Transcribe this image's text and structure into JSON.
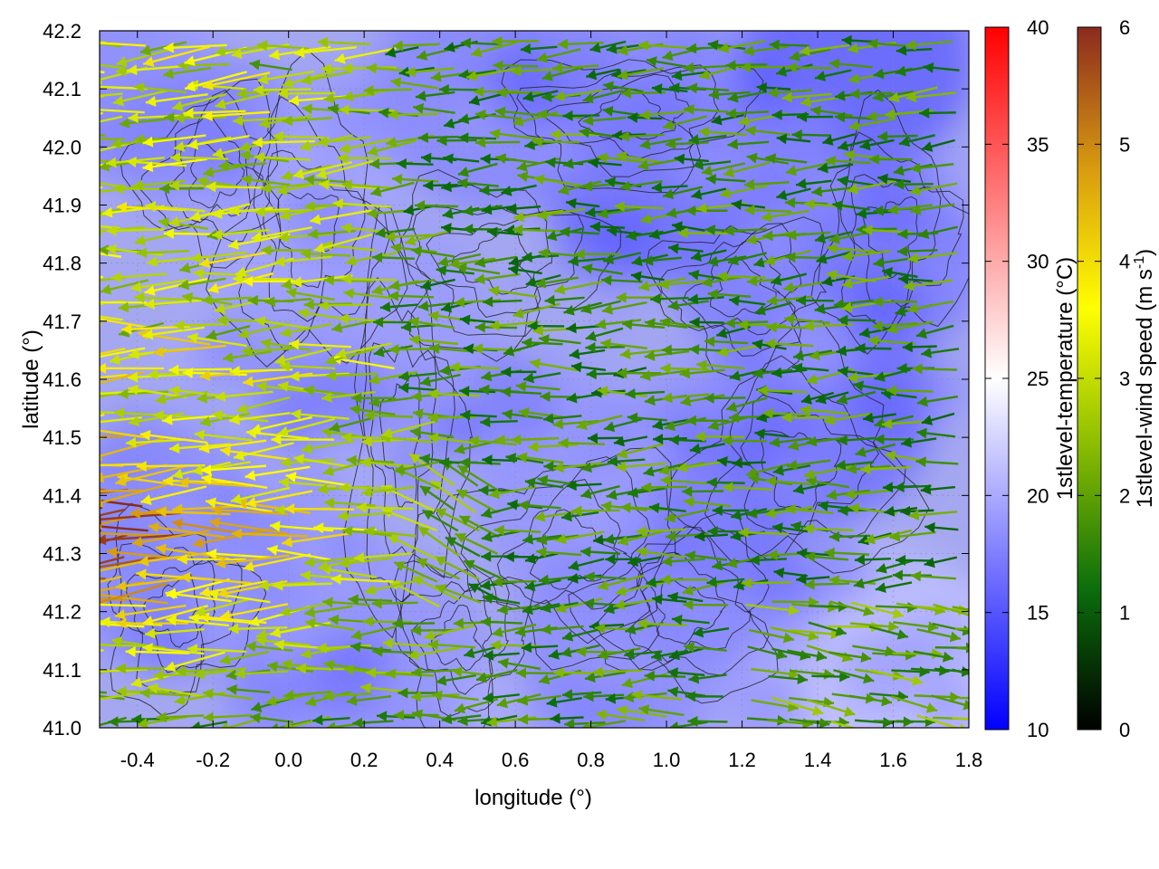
{
  "chart_data": {
    "type": "heatmap",
    "title": "",
    "xlabel": "longitude (°)",
    "ylabel": "latitude (°)",
    "xlim": [
      -0.5,
      1.8
    ],
    "ylim": [
      41.0,
      42.2
    ],
    "x_ticks": [
      "-0.4",
      "-0.2",
      "0.0",
      "0.2",
      "0.4",
      "0.6",
      "0.8",
      "1.0",
      "1.2",
      "1.4",
      "1.6",
      "1.8"
    ],
    "y_ticks": [
      "41.0",
      "41.1",
      "41.2",
      "41.3",
      "41.4",
      "41.5",
      "41.6",
      "41.7",
      "41.8",
      "41.9",
      "42.0",
      "42.1",
      "42.2"
    ],
    "grid": true,
    "layers": [
      {
        "kind": "heatmap",
        "name": "1stlevel-temperature",
        "approx_range": [
          14,
          22
        ]
      },
      {
        "kind": "contour",
        "name": "terrain",
        "color": "#202020"
      },
      {
        "kind": "vector",
        "name": "1stlevel-wind speed",
        "direction": "mostly westward, eastward in south-east corner"
      }
    ],
    "colorbars": [
      {
        "title": "1stlevel-temperature (°C)",
        "min": 10,
        "max": 40,
        "ticks": [
          "10",
          "15",
          "20",
          "25",
          "30",
          "35",
          "40"
        ],
        "colors": [
          "#0000ff",
          "#ffffff",
          "#ff0000"
        ]
      },
      {
        "title_main": "1stlevel-wind speed (m s",
        "title_sup": "-1",
        "title_end": ")",
        "min": 0,
        "max": 6,
        "ticks": [
          "0",
          "1",
          "2",
          "3",
          "4",
          "5",
          "6"
        ],
        "colors": [
          "#000000",
          "#0b6e0b",
          "#88bb00",
          "#ffff00",
          "#d89a10",
          "#8b2a1e"
        ]
      }
    ]
  }
}
